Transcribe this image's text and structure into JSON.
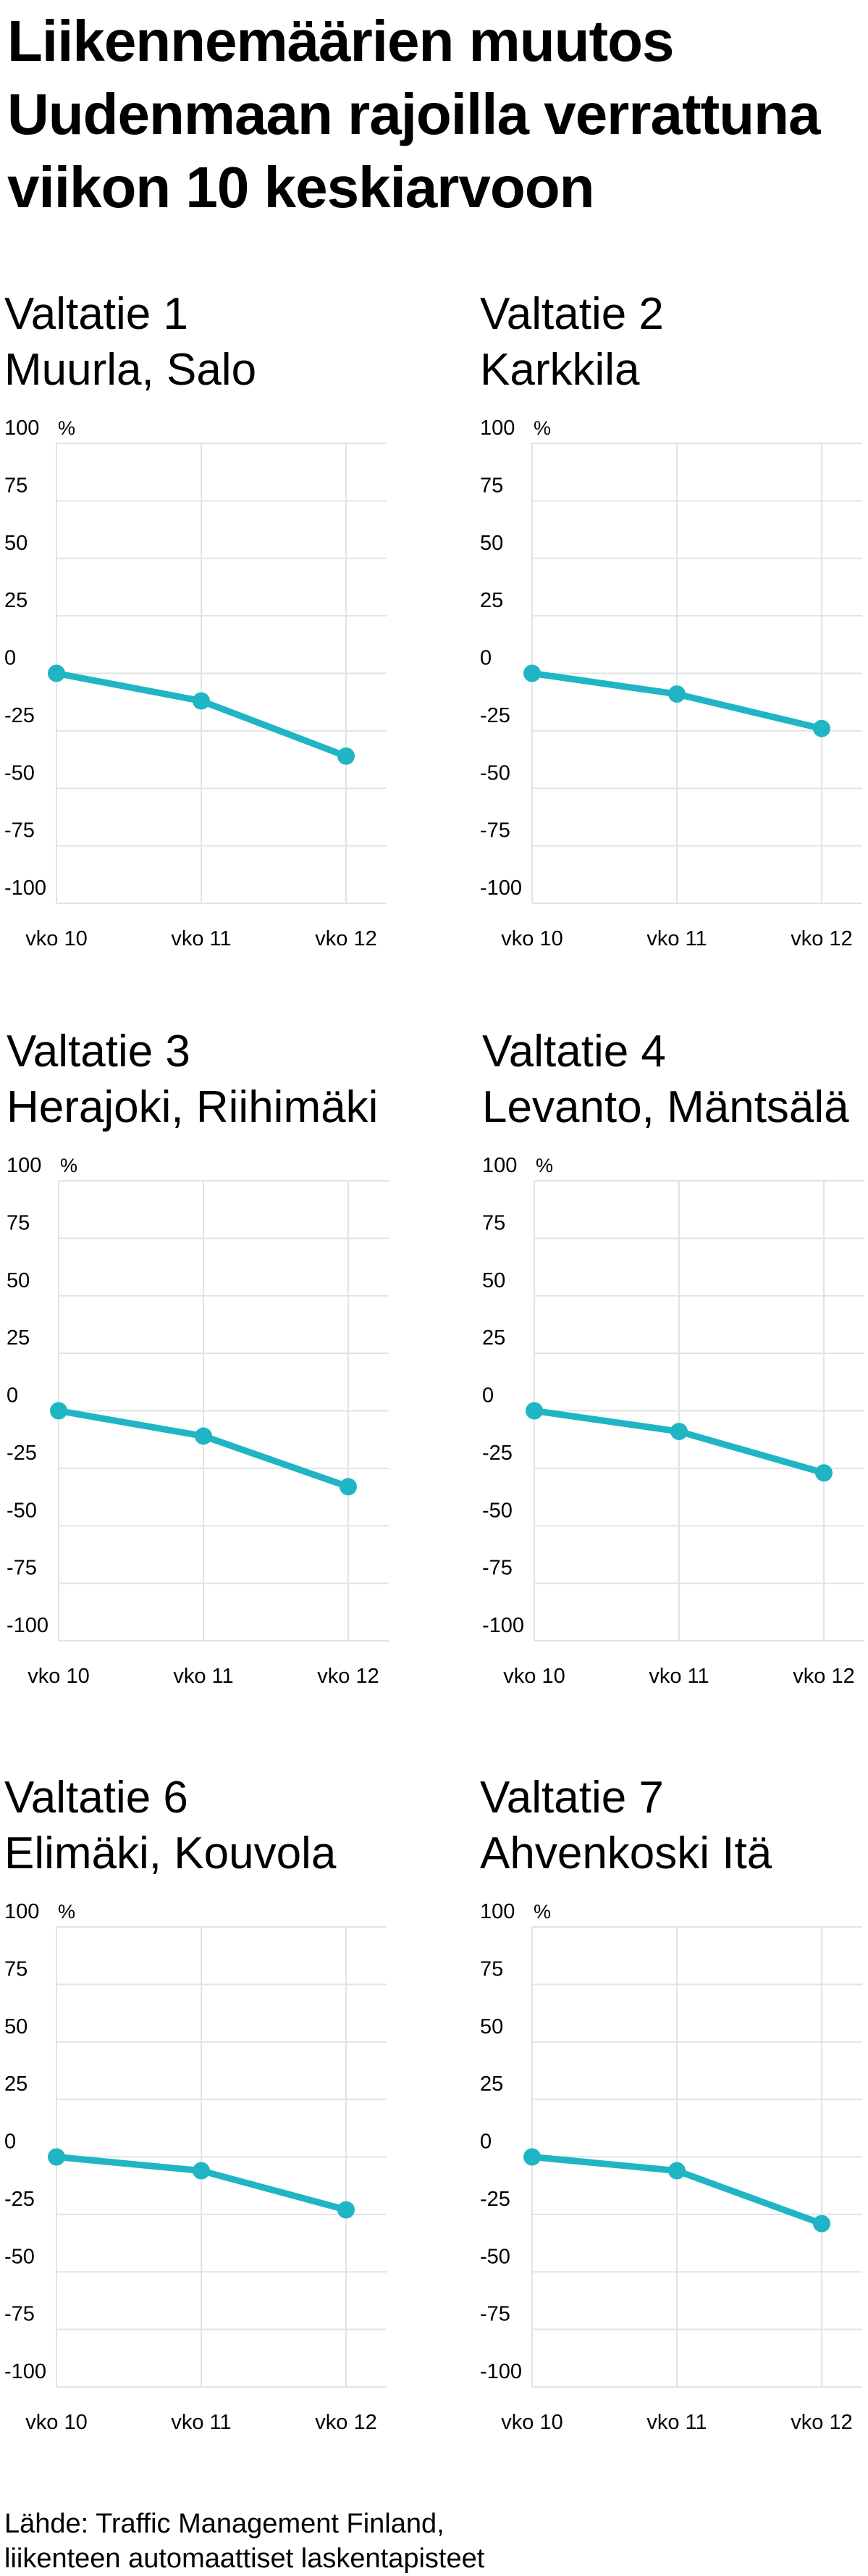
{
  "title": {
    "line1": "Liikennemäärien muutos",
    "line2": "Uudenmaan rajoilla verrattuna",
    "line3": "viikon 10 keskiarvoon"
  },
  "colors": {
    "series": "#1fb5c4",
    "grid": "#e3e3e3",
    "text": "#000000"
  },
  "chart_data": [
    {
      "type": "line",
      "road": "Valtatie 1",
      "place": "Muurla, Salo",
      "categories": [
        "vko 10",
        "vko 11",
        "vko 12"
      ],
      "values": [
        0,
        -12,
        -36
      ],
      "ylim": [
        -100,
        100
      ],
      "yticks": [
        "100",
        "75",
        "50",
        "25",
        "0",
        "-25",
        "-50",
        "-75",
        "-100"
      ],
      "yunit": "%",
      "grid": true
    },
    {
      "type": "line",
      "road": "Valtatie 2",
      "place": "Karkkila",
      "categories": [
        "vko 10",
        "vko 11",
        "vko 12"
      ],
      "values": [
        0,
        -9,
        -24
      ],
      "ylim": [
        -100,
        100
      ],
      "yticks": [
        "100",
        "75",
        "50",
        "25",
        "0",
        "-25",
        "-50",
        "-75",
        "-100"
      ],
      "yunit": "%",
      "grid": true
    },
    {
      "type": "line",
      "road": "Valtatie 3",
      "place": "Herajoki, Riihimäki",
      "categories": [
        "vko 10",
        "vko 11",
        "vko 12"
      ],
      "values": [
        0,
        -11,
        -33
      ],
      "ylim": [
        -100,
        100
      ],
      "yticks": [
        "100",
        "75",
        "50",
        "25",
        "0",
        "-25",
        "-50",
        "-75",
        "-100"
      ],
      "yunit": "%",
      "grid": true
    },
    {
      "type": "line",
      "road": "Valtatie 4",
      "place": "Levanto, Mäntsälä",
      "categories": [
        "vko 10",
        "vko 11",
        "vko 12"
      ],
      "values": [
        0,
        -9,
        -27
      ],
      "ylim": [
        -100,
        100
      ],
      "yticks": [
        "100",
        "75",
        "50",
        "25",
        "0",
        "-25",
        "-50",
        "-75",
        "-100"
      ],
      "yunit": "%",
      "grid": true
    },
    {
      "type": "line",
      "road": "Valtatie 6",
      "place": "Elimäki, Kouvola",
      "categories": [
        "vko 10",
        "vko 11",
        "vko 12"
      ],
      "values": [
        0,
        -6,
        -23
      ],
      "ylim": [
        -100,
        100
      ],
      "yticks": [
        "100",
        "75",
        "50",
        "25",
        "0",
        "-25",
        "-50",
        "-75",
        "-100"
      ],
      "yunit": "%",
      "grid": true
    },
    {
      "type": "line",
      "road": "Valtatie 7",
      "place": "Ahvenkoski Itä",
      "categories": [
        "vko 10",
        "vko 11",
        "vko 12"
      ],
      "values": [
        0,
        -6,
        -29
      ],
      "ylim": [
        -100,
        100
      ],
      "yticks": [
        "100",
        "75",
        "50",
        "25",
        "0",
        "-25",
        "-50",
        "-75",
        "-100"
      ],
      "yunit": "%",
      "grid": true
    }
  ],
  "source": {
    "line1": "Lähde: Traffic Management Finland,",
    "line2": "liikenteen automaattiset laskentapisteet"
  }
}
